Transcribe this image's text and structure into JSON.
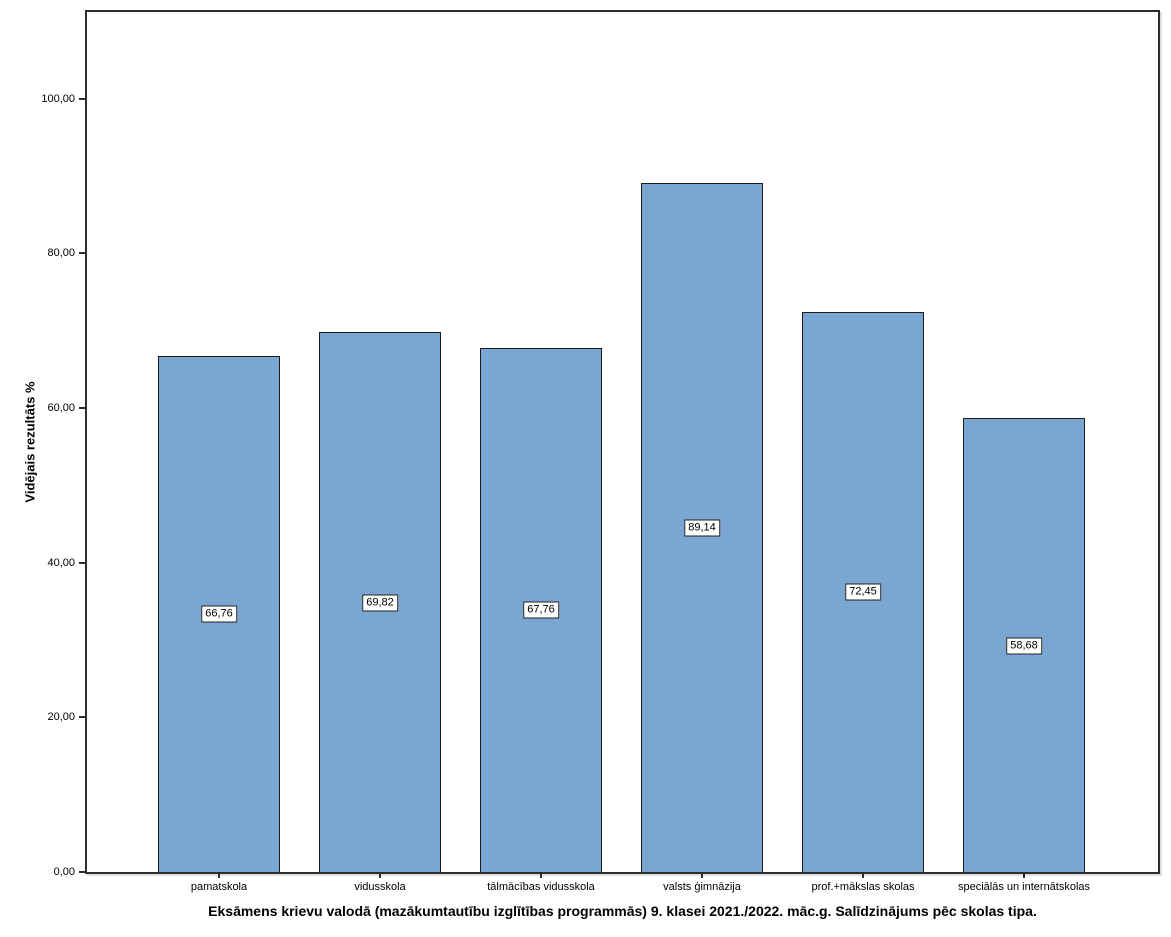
{
  "chart_data": {
    "type": "bar",
    "title": "Eksāmens krievu valodā (mazākumtautību izglītības programmās) 9. klasei 2021./2022. māc.g. Salīdzinājums pēc skolas tipa.",
    "ylabel": "Vidējais rezultāts %",
    "xlabel": "",
    "categories": [
      "pamatskola",
      "vidusskola",
      "tālmācības vidusskola",
      "valsts ģimnāzija",
      "prof.+mākslas skolas",
      "speciālās un internātskolas"
    ],
    "values": [
      66.76,
      69.82,
      67.76,
      89.14,
      72.45,
      58.68
    ],
    "value_labels": [
      "66,76",
      "69,82",
      "67,76",
      "89,14",
      "72,45",
      "58,68"
    ],
    "ytick_values": [
      0,
      20,
      40,
      60,
      80,
      100
    ],
    "ytick_labels": [
      "0,00",
      "20,00",
      "40,00",
      "60,00",
      "80,00",
      "100,00"
    ],
    "ylim": [
      0,
      111.2
    ],
    "grid": false,
    "legend": "none",
    "bar_color": "#7AA6D2",
    "bar_border_color": "#1c1c1c",
    "frame_color": "#2d2d2d",
    "label_box_background": "#ffffff"
  }
}
